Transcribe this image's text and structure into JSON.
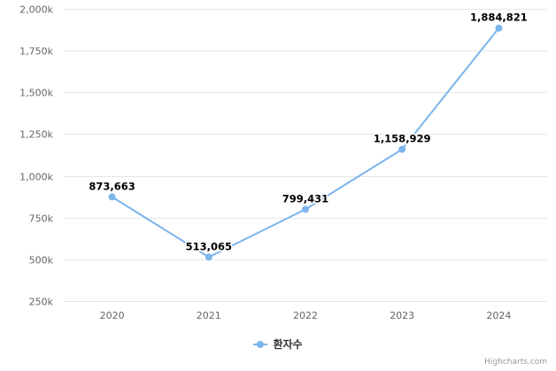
{
  "chart_data": {
    "type": "line",
    "title": "",
    "xlabel": "",
    "ylabel": "",
    "categories": [
      "2020",
      "2021",
      "2022",
      "2023",
      "2024"
    ],
    "series": [
      {
        "name": "환자수",
        "color": "#7cb5ec",
        "values": [
          873663,
          513065,
          799431,
          1158929,
          1884821
        ],
        "data_labels": [
          "873,663",
          "513,065",
          "799,431",
          "1,158,929",
          "1,884,821"
        ]
      }
    ],
    "ylim": [
      250000,
      2000000
    ],
    "yticks": [
      250000,
      500000,
      750000,
      1000000,
      1250000,
      1500000,
      1750000,
      2000000
    ],
    "ytick_labels": [
      "250k",
      "500k",
      "750k",
      "1,000k",
      "1,250k",
      "1,500k",
      "1,750k",
      "2,000k"
    ],
    "grid": true,
    "legend_position": "bottom-center"
  },
  "legend": {
    "label": "환자수"
  },
  "credits": {
    "text": "Highcharts.com"
  },
  "colors": {
    "series": "#7cb5ec",
    "grid": "#e6e6e6",
    "axis_text": "#666666"
  }
}
